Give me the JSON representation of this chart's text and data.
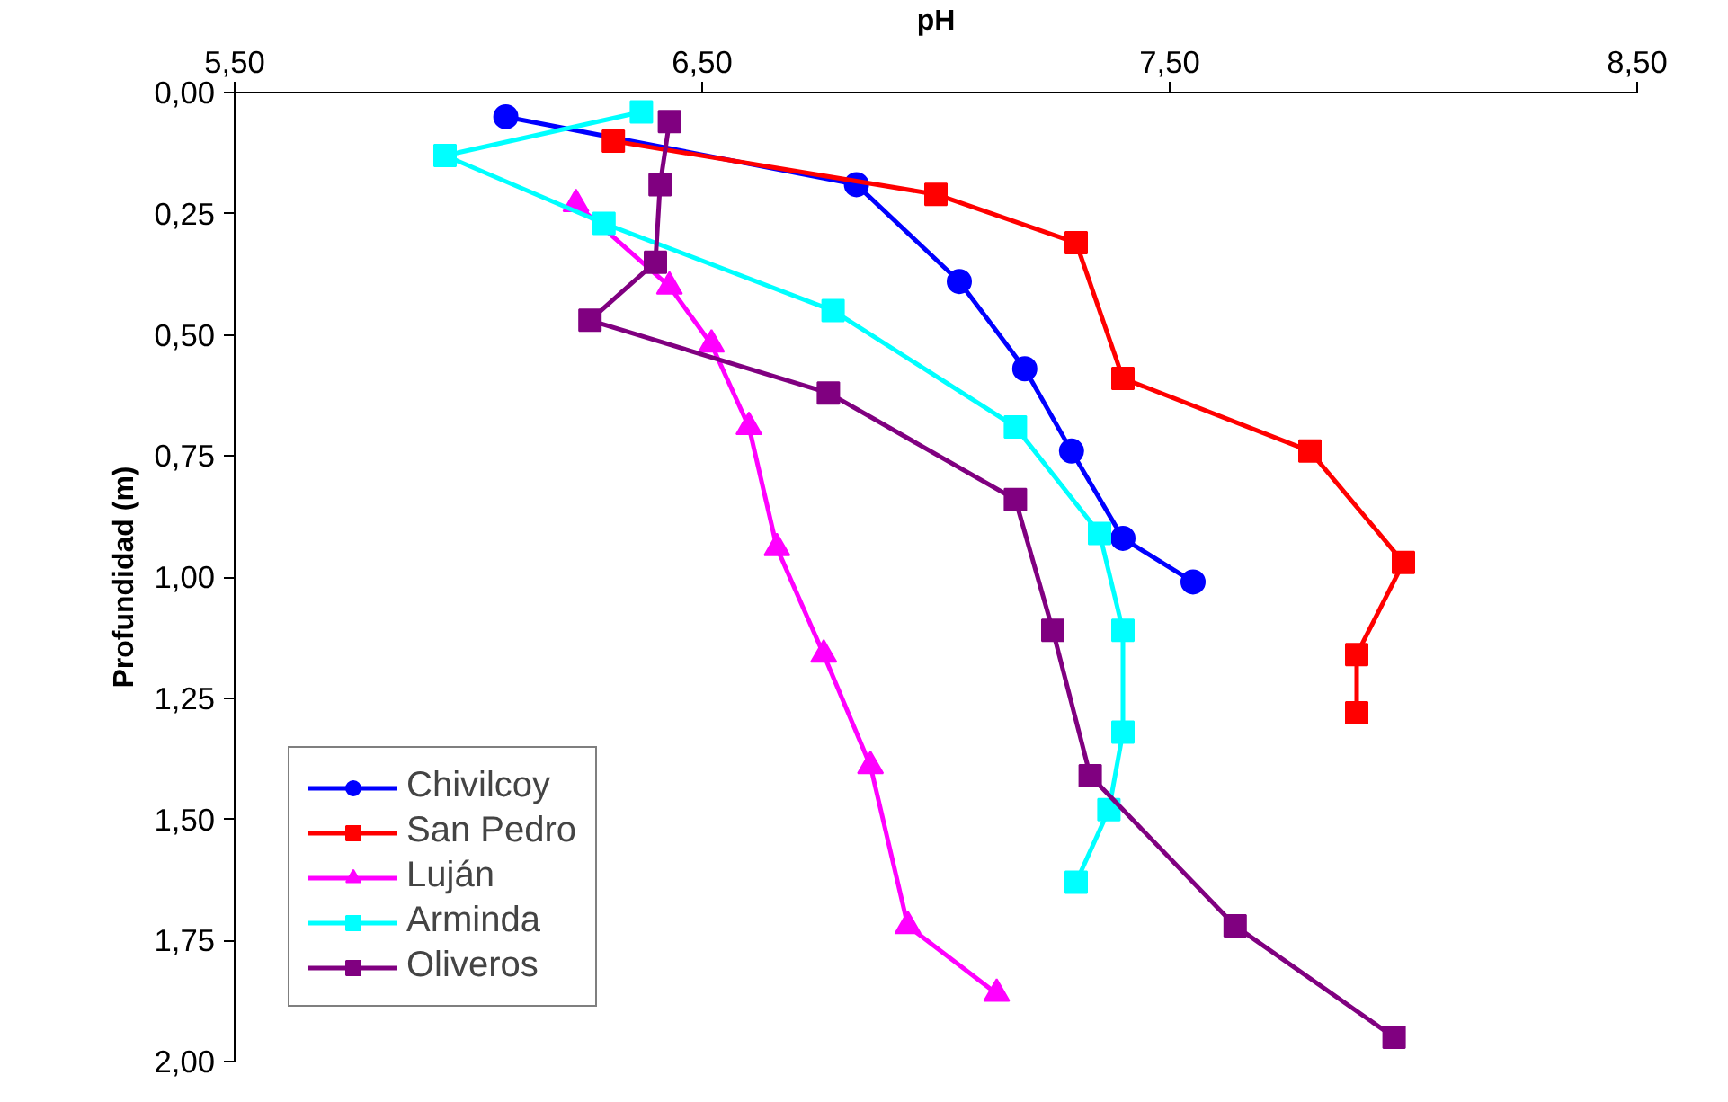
{
  "chart_data": {
    "type": "line",
    "xlabel": "pH",
    "ylabel": "Profundidad (m)",
    "xlim": [
      5.5,
      8.5
    ],
    "ylim": [
      2.0,
      0.0
    ],
    "xticks": [
      {
        "value": 5.5,
        "label": "5,50"
      },
      {
        "value": 6.5,
        "label": "6,50"
      },
      {
        "value": 7.5,
        "label": "7,50"
      },
      {
        "value": 8.5,
        "label": "8,50"
      }
    ],
    "yticks": [
      {
        "value": 0,
        "label": "0,00"
      },
      {
        "value": 0.25,
        "label": "0,25"
      },
      {
        "value": 0.5,
        "label": "0,50"
      },
      {
        "value": 0.75,
        "label": "0,75"
      },
      {
        "value": 1.0,
        "label": "1,00"
      },
      {
        "value": 1.25,
        "label": "1,25"
      },
      {
        "value": 1.5,
        "label": "1,50"
      },
      {
        "value": 1.75,
        "label": "1,75"
      },
      {
        "value": 2.0,
        "label": "2,00"
      }
    ],
    "grid": false,
    "legend": "bottom left",
    "line_style": "solid",
    "series": [
      {
        "name": "Chivilcoy",
        "color": "#0000ff",
        "marker": "circle",
        "x": [
          6.08,
          6.83,
          7.05,
          7.19,
          7.29,
          7.4,
          7.55
        ],
        "values": [
          0.05,
          0.19,
          0.39,
          0.57,
          0.74,
          0.92,
          1.01
        ]
      },
      {
        "name": "San Pedro",
        "color": "#ff0000",
        "marker": "square",
        "x": [
          6.31,
          7.0,
          7.3,
          7.4,
          7.8,
          8.0,
          7.9,
          7.9
        ],
        "values": [
          0.1,
          0.21,
          0.31,
          0.59,
          0.74,
          0.97,
          1.16,
          1.28
        ]
      },
      {
        "name": "Luján",
        "color": "#ff00ff",
        "marker": "triangle",
        "x": [
          null,
          6.23,
          6.43,
          6.52,
          6.6,
          6.66,
          6.76,
          6.86,
          6.94,
          7.13
        ],
        "values": [
          null,
          0.23,
          0.4,
          0.52,
          0.69,
          0.94,
          1.16,
          1.39,
          1.72,
          1.86
        ]
      },
      {
        "name": "Arminda",
        "color": "#00ffff",
        "marker": "square",
        "x": [
          6.37,
          5.95,
          6.29,
          6.78,
          7.17,
          7.35,
          7.4,
          7.4,
          7.37,
          7.3
        ],
        "values": [
          0.04,
          0.13,
          0.27,
          0.45,
          0.69,
          0.91,
          1.11,
          1.32,
          1.48,
          1.63
        ]
      },
      {
        "name": "Oliveros",
        "color": "#800080",
        "marker": "square",
        "x": [
          6.43,
          6.41,
          6.4,
          6.26,
          6.77,
          7.17,
          7.25,
          7.33,
          7.64,
          7.98
        ],
        "values": [
          0.06,
          0.19,
          0.35,
          0.47,
          0.62,
          0.84,
          1.11,
          1.41,
          1.72,
          1.95
        ]
      }
    ]
  }
}
